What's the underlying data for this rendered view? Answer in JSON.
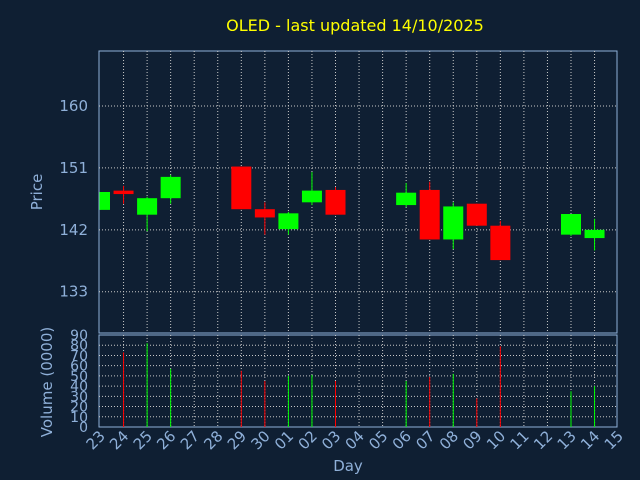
{
  "title": "OLED - last updated 14/10/2025",
  "colors": {
    "background": "#0f1f33",
    "title": "#ffff00",
    "text": "#8fb0d9",
    "up": "#00ff00",
    "down": "#ff0000",
    "grid": "#c8c8c8"
  },
  "chart_data": {
    "type": "candlestick",
    "xlabel": "Day",
    "price_axis": {
      "label": "Price",
      "ticks": [
        133,
        142,
        151,
        160
      ],
      "range": [
        127,
        168
      ]
    },
    "volume_axis": {
      "label": "Volume (0000)",
      "ticks": [
        0,
        10,
        20,
        30,
        40,
        50,
        60,
        70,
        80,
        90
      ],
      "range": [
        0,
        90
      ]
    },
    "days": [
      "23",
      "24",
      "25",
      "26",
      "27",
      "28",
      "29",
      "30",
      "01",
      "02",
      "03",
      "04",
      "05",
      "06",
      "07",
      "08",
      "09",
      "10",
      "11",
      "12",
      "13",
      "14",
      "15"
    ],
    "candles": [
      {
        "day": "23",
        "open": 144.9,
        "close": 147.5,
        "high": 147.5,
        "low": 144.9,
        "volume": 0
      },
      {
        "day": "24",
        "open": 147.7,
        "close": 147.2,
        "high": 148.4,
        "low": 145.8,
        "volume": 73
      },
      {
        "day": "25",
        "open": 144.2,
        "close": 146.6,
        "high": 146.8,
        "low": 141.8,
        "volume": 82
      },
      {
        "day": "26",
        "open": 146.6,
        "close": 149.7,
        "high": 150.0,
        "low": 145.8,
        "volume": 57
      },
      {
        "day": "29",
        "open": 151.2,
        "close": 145.0,
        "high": 151.2,
        "low": 145.0,
        "volume": 55
      },
      {
        "day": "30",
        "open": 145.0,
        "close": 143.8,
        "high": 146.0,
        "low": 141.3,
        "volume": 45
      },
      {
        "day": "01",
        "open": 142.1,
        "close": 144.4,
        "high": 144.6,
        "low": 141.3,
        "volume": 50
      },
      {
        "day": "02",
        "open": 146.0,
        "close": 147.7,
        "high": 150.4,
        "low": 145.6,
        "volume": 51
      },
      {
        "day": "03",
        "open": 147.8,
        "close": 144.2,
        "high": 148.2,
        "low": 144.2,
        "volume": 45
      },
      {
        "day": "06",
        "open": 145.6,
        "close": 147.4,
        "high": 148.8,
        "low": 145.3,
        "volume": 45
      },
      {
        "day": "07",
        "open": 147.8,
        "close": 140.6,
        "high": 149.0,
        "low": 140.6,
        "volume": 49
      },
      {
        "day": "08",
        "open": 140.6,
        "close": 145.4,
        "high": 146.0,
        "low": 139.2,
        "volume": 52
      },
      {
        "day": "09",
        "open": 145.8,
        "close": 142.6,
        "high": 145.8,
        "low": 142.6,
        "volume": 28
      },
      {
        "day": "10",
        "open": 142.6,
        "close": 137.6,
        "high": 143.3,
        "low": 137.6,
        "volume": 79
      },
      {
        "day": "13",
        "open": 141.3,
        "close": 144.3,
        "high": 144.3,
        "low": 141.1,
        "volume": 35
      },
      {
        "day": "14",
        "open": 140.8,
        "close": 142.0,
        "high": 143.6,
        "low": 139.0,
        "volume": 40
      }
    ]
  }
}
